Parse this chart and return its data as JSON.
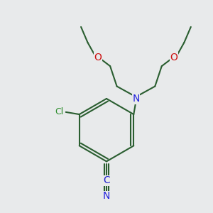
{
  "bg_color": "#e8eaeb",
  "bond_color": "#2a5e30",
  "N_color": "#2222dd",
  "O_color": "#cc1111",
  "Cl_color": "#2a8c2a",
  "C_color": "#2222cc",
  "N_label": "N",
  "O_label": "O",
  "Cl_label": "Cl",
  "C_label": "C",
  "N_label2": "N",
  "bond_lw": 1.5,
  "figsize": [
    3.0,
    3.0
  ],
  "dpi": 100
}
